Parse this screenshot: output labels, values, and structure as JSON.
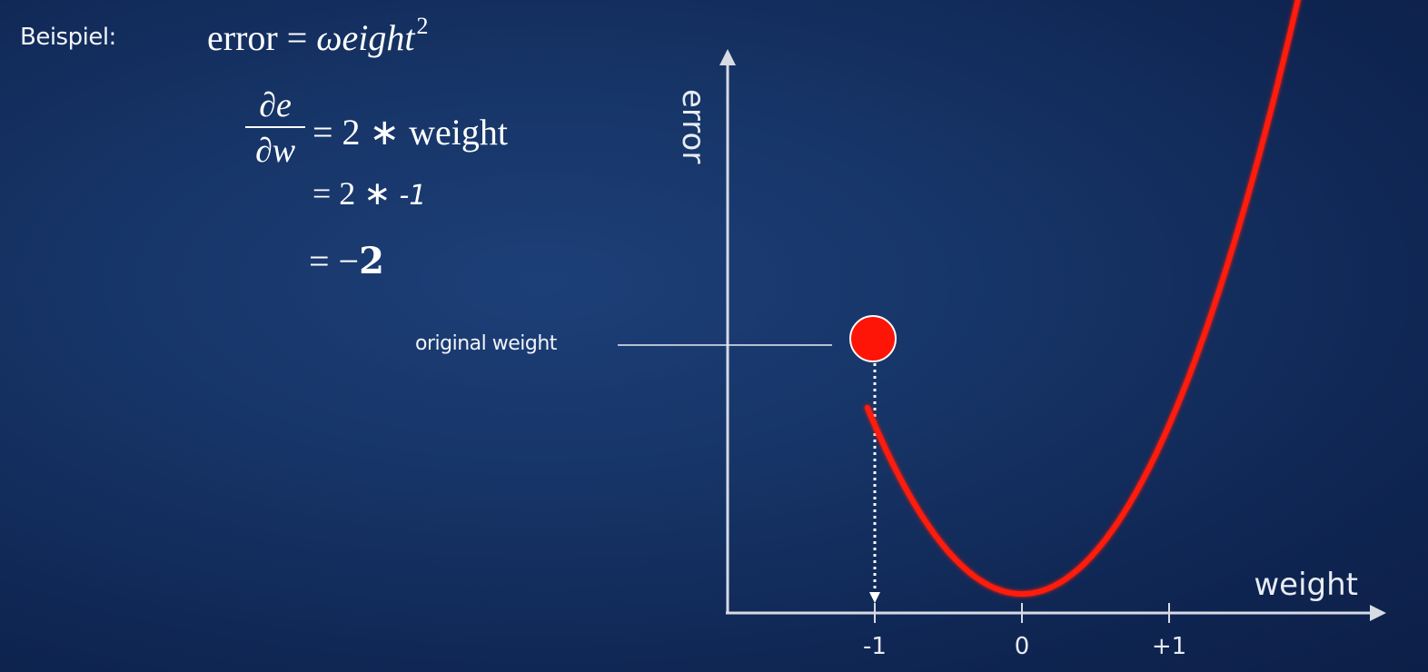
{
  "intro_label": "Beispiel:",
  "equations": {
    "line1": {
      "lhs": "error = ",
      "rhs": "ωeight",
      "exp": "2"
    },
    "derivative": {
      "numerator": "∂e",
      "denominator": "∂w"
    },
    "line2": "= 2 ∗ weight",
    "line3": {
      "prefix": "= 2  ∗ ",
      "value": "-1"
    },
    "line4": {
      "prefix": "= −",
      "value": "2"
    }
  },
  "annotation": {
    "label": "original weight"
  },
  "colors": {
    "background": "#163466",
    "curve": "#ff1a0a",
    "axis": "#d6dbe4"
  },
  "chart_data": {
    "type": "line",
    "function": "error = weight^2",
    "xlabel": "weight",
    "ylabel": "error",
    "xticks": [
      {
        "value": -1,
        "label": "-1"
      },
      {
        "value": 0,
        "label": "0"
      },
      {
        "value": 1,
        "label": "+1"
      }
    ],
    "xlim": [
      -1.05,
      2.48
    ],
    "x": [
      -0.9,
      -0.6,
      -0.3,
      0,
      0.3,
      0.6,
      0.9
    ],
    "y": [
      0.81,
      0.36,
      0.09,
      0,
      0.09,
      0.36,
      0.81
    ],
    "highlight_point": {
      "x": -1,
      "label": "original weight"
    },
    "grid": false,
    "legend": "none"
  }
}
